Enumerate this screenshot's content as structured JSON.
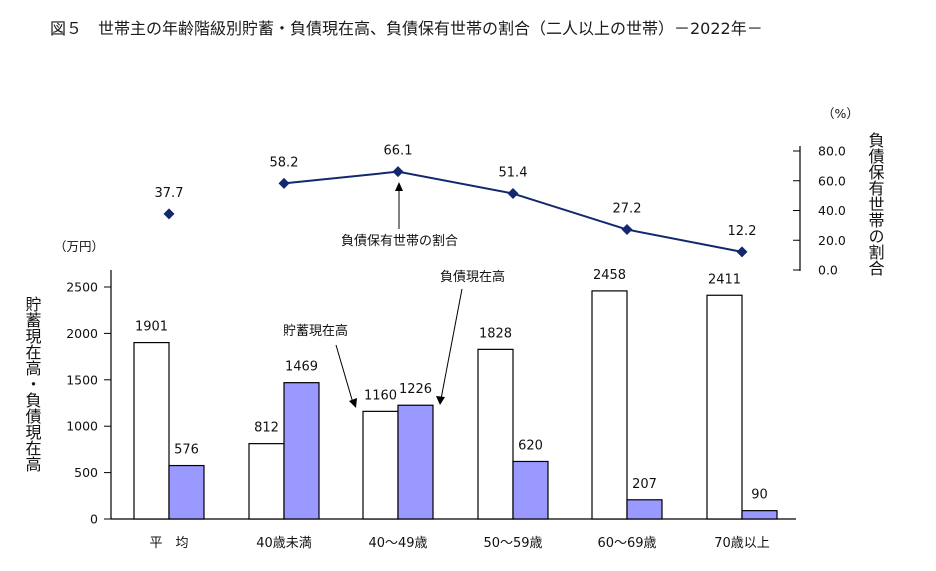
{
  "chart_data": {
    "type": "bar",
    "title": "図５　世帯主の年齢階級別貯蓄・負債現在高、負債保有世帯の割合（二人以上の世帯）－2022年－",
    "categories": [
      "平　均",
      "40歳未満",
      "40～49歳",
      "50～59歳",
      "60～69歳",
      "70歳以上"
    ],
    "series": [
      {
        "name": "貯蓄現在高",
        "values": [
          1901,
          812,
          1160,
          1828,
          2458,
          2411
        ],
        "color": "#ffffff"
      },
      {
        "name": "負債現在高",
        "values": [
          576,
          1469,
          1226,
          620,
          207,
          90
        ],
        "color": "#9999ff"
      }
    ],
    "line_series": {
      "name": "負債保有世帯の割合",
      "values": [
        37.7,
        58.2,
        66.1,
        51.4,
        27.2,
        12.2
      ],
      "values_text": [
        "37.7",
        "58.2",
        "66.1",
        "51.4",
        "27.2",
        "12.2"
      ],
      "color": "#13286e",
      "connected_from_index": 1
    },
    "left_axis": {
      "label": "貯蓄現在高・負債現在高",
      "unit": "（万円）",
      "ylim": [
        0,
        2700
      ],
      "ticks": [
        0,
        500,
        1000,
        1500,
        2000,
        2500
      ]
    },
    "right_axis": {
      "label": "負債保有世帯の割合",
      "unit": "（%）",
      "ylim": [
        0,
        85
      ],
      "ticks": [
        0,
        20,
        40,
        60,
        80
      ],
      "tick_labels": [
        "0.0",
        "20.0",
        "40.0",
        "60.0",
        "80.0"
      ]
    },
    "annotations": {
      "savings": "貯蓄現在高",
      "debt": "負債現在高",
      "ratio": "負債保有世帯の割合"
    },
    "grid": false,
    "legend": "none"
  }
}
